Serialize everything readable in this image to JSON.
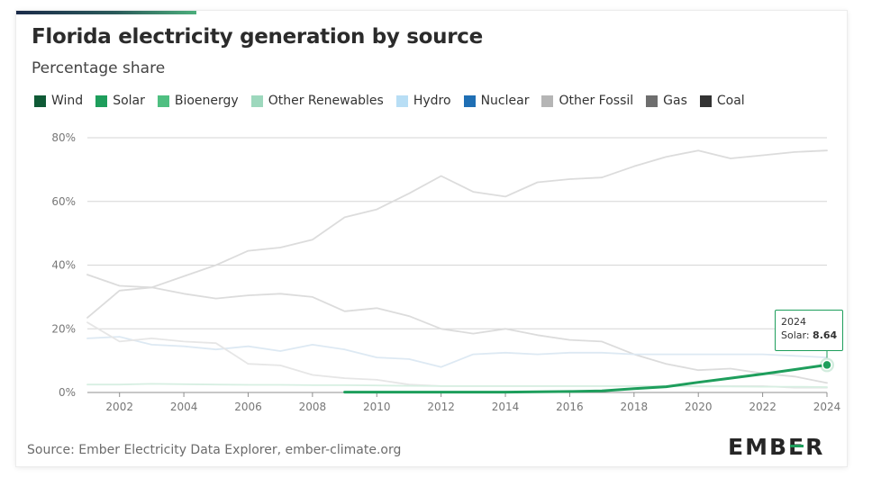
{
  "header": {
    "title": "Florida electricity generation by source",
    "subtitle": "Percentage share"
  },
  "legend": [
    {
      "label": "Wind",
      "color": "#0f5a36"
    },
    {
      "label": "Solar",
      "color": "#1e9e5c"
    },
    {
      "label": "Bioenergy",
      "color": "#4fbf81"
    },
    {
      "label": "Other Renewables",
      "color": "#9dd8bd"
    },
    {
      "label": "Hydro",
      "color": "#b8def5"
    },
    {
      "label": "Nuclear",
      "color": "#1f6fb4"
    },
    {
      "label": "Other Fossil",
      "color": "#b5b5b5"
    },
    {
      "label": "Gas",
      "color": "#6e6e6e"
    },
    {
      "label": "Coal",
      "color": "#333333"
    }
  ],
  "tooltip": {
    "year": "2024",
    "series": "Solar",
    "value": "8.64"
  },
  "footer": {
    "source": "Source: Ember Electricity Data Explorer, ember-climate.org",
    "logo": "EMBER"
  },
  "chart_data": {
    "type": "line",
    "title": "Florida electricity generation by source",
    "subtitle": "Percentage share",
    "x": [
      2001,
      2002,
      2003,
      2004,
      2005,
      2006,
      2007,
      2008,
      2009,
      2010,
      2011,
      2012,
      2013,
      2014,
      2015,
      2016,
      2017,
      2018,
      2019,
      2020,
      2021,
      2022,
      2023,
      2024
    ],
    "x_ticks": [
      "2002",
      "2004",
      "2006",
      "2008",
      "2010",
      "2012",
      "2014",
      "2016",
      "2018",
      "2020",
      "2022",
      "2024"
    ],
    "y_ticks": [
      "0%",
      "20%",
      "40%",
      "60%",
      "80%"
    ],
    "ylim": [
      0,
      80
    ],
    "grid": true,
    "legend_position": "top",
    "highlighted_series": "Solar",
    "series": [
      {
        "name": "Gas",
        "color": "#dcdcdc",
        "values": [
          23.5,
          32,
          33,
          36.5,
          40,
          44.5,
          45.5,
          48,
          55,
          57.5,
          62.5,
          68,
          63,
          61.5,
          66,
          67,
          67.5,
          71,
          74,
          76,
          73.5,
          74.5,
          75.5,
          76
        ]
      },
      {
        "name": "Coal",
        "color": "#dcdcdc",
        "values": [
          37,
          33.5,
          33,
          31,
          29.5,
          30.5,
          31,
          30,
          25.5,
          26.5,
          24,
          20,
          18.5,
          20,
          18,
          16.5,
          16,
          12,
          9,
          7,
          7.5,
          6,
          5,
          3
        ]
      },
      {
        "name": "Nuclear",
        "color": "#dde9f3",
        "values": [
          17,
          17.5,
          15,
          14.5,
          13.5,
          14.5,
          13,
          15,
          13.5,
          11,
          10.5,
          8,
          12,
          12.5,
          12,
          12.5,
          12.5,
          12,
          12,
          12,
          12,
          12,
          11.5,
          11
        ]
      },
      {
        "name": "Other Fossil",
        "color": "#e6e6e6",
        "values": [
          22,
          16,
          17,
          16,
          15.5,
          9,
          8.5,
          5.5,
          4.5,
          4,
          2.5,
          2,
          2,
          2,
          2,
          2,
          2,
          2,
          2,
          2,
          2,
          2,
          1.5,
          1.5
        ]
      },
      {
        "name": "Bioenergy",
        "color": "#d7efe2",
        "values": [
          2.5,
          2.5,
          2.7,
          2.6,
          2.5,
          2.4,
          2.4,
          2.3,
          2.3,
          2.2,
          2.1,
          2,
          2,
          2,
          2,
          2,
          2,
          2,
          2,
          1.9,
          1.9,
          1.8,
          1.8,
          1.7
        ]
      },
      {
        "name": "Solar",
        "color": "#1e9e5c",
        "values": [
          null,
          null,
          null,
          null,
          null,
          null,
          null,
          null,
          0.1,
          0.1,
          0.1,
          0.1,
          0.1,
          0.1,
          0.2,
          0.3,
          0.5,
          1.2,
          1.8,
          3.2,
          4.5,
          5.8,
          7.2,
          8.64
        ]
      }
    ]
  }
}
